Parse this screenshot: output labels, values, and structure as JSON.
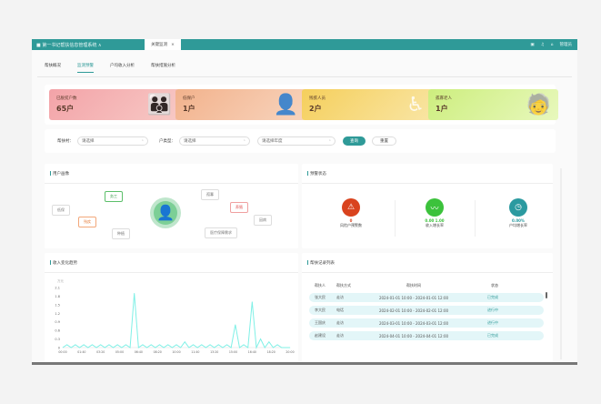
{
  "topbar": {
    "brand": "■ 第一书记帮扶信息管理系统 ∧",
    "tab": "关键监测",
    "tab_close": "×",
    "user": "管理员"
  },
  "tabs": [
    {
      "label": "帮扶概况"
    },
    {
      "label": "监测预警"
    },
    {
      "label": "户均收入分析"
    },
    {
      "label": "帮扶措施分析"
    }
  ],
  "cards": [
    {
      "label": "已脱贫户数",
      "value": "65户",
      "color_from": "#f3a3a8",
      "color_to": "#f7c9c5",
      "icon": "family-icon"
    },
    {
      "label": "低保户",
      "value": "1户",
      "color_from": "#f2b28c",
      "color_to": "#f8d4bd",
      "icon": "person-icon"
    },
    {
      "label": "残疾人员",
      "value": "2户",
      "color_from": "#f5cf5c",
      "color_to": "#f9e5a4",
      "icon": "wheelchair-icon"
    },
    {
      "label": "孤寡老人",
      "value": "1户",
      "color_from": "#cdee7e",
      "color_to": "#e8f8bd",
      "icon": "elderly-icon"
    }
  ],
  "filter": {
    "label1": "帮扶村：",
    "select1": "请选择",
    "label2": "户类型：",
    "select2": "请选择",
    "select3": "请选择年度",
    "query": "查询",
    "reset": "重置"
  },
  "portrait": {
    "title": "用户画像",
    "tags": [
      "务工",
      "低保",
      "残疾",
      "种植",
      "孤寡",
      "养殖",
      "因病",
      "医疗保障需求"
    ]
  },
  "warning": {
    "title": "预警状态",
    "items": [
      {
        "value": "0",
        "label": "风险户预警数",
        "color": "#d9431e"
      },
      {
        "value": "0.00  1.00",
        "label": "收入增长率",
        "color": "#3cc23c"
      },
      {
        "value": "0.00%",
        "label": "户均增长率",
        "color": "#2b9aa0"
      }
    ]
  },
  "chart_title": "收入变化趋势",
  "chart_data": {
    "type": "line",
    "color": "#7ff0e6",
    "ylabel": "万元",
    "ylim": [
      0,
      2.1
    ],
    "yticks": [
      "0",
      "0.3",
      "0.6",
      "0.9",
      "1.2",
      "1.5",
      "1.8",
      "2.1"
    ],
    "xticks": [
      "00:00",
      "01:40",
      "03:20",
      "05:00",
      "06:40",
      "08:20",
      "10:00",
      "11:40",
      "13:20",
      "15:00",
      "16:40",
      "18:20",
      "20:00"
    ],
    "values": [
      0,
      0.1,
      0,
      0.1,
      0,
      0.1,
      0,
      0.1,
      0,
      0.1,
      0,
      0.1,
      0,
      0.1,
      0,
      0.1,
      0,
      1.9,
      0,
      0.1,
      0,
      0.1,
      0,
      0.1,
      0,
      0.1,
      0,
      0.1,
      0,
      0.2,
      0,
      0.1,
      0,
      0.1,
      0,
      0.1,
      0,
      0.1,
      0,
      0.1,
      0,
      0.8,
      0,
      0.1,
      0,
      1.6,
      0,
      0.3,
      0,
      0.2,
      0,
      0.1,
      0,
      0,
      0
    ]
  },
  "list": {
    "title": "帮扶记录列表",
    "headers": [
      "帮扶人",
      "帮扶方式",
      "帮扶时间",
      "状态"
    ],
    "rows": [
      [
        "张大民",
        "走访",
        "2024-01-01 10:00 - 2024-01-01 12:00",
        "已完成"
      ],
      [
        "李大民",
        "电话",
        "2024-02-01 10:00 - 2024-02-01 12:00",
        "进行中"
      ],
      [
        "王国庆",
        "走访",
        "2024-03-01 10:00 - 2024-03-01 12:00",
        "进行中"
      ],
      [
        "赵建设",
        "走访",
        "2024-04-01 10:00 - 2024-04-01 12:00",
        "已完成"
      ]
    ]
  }
}
